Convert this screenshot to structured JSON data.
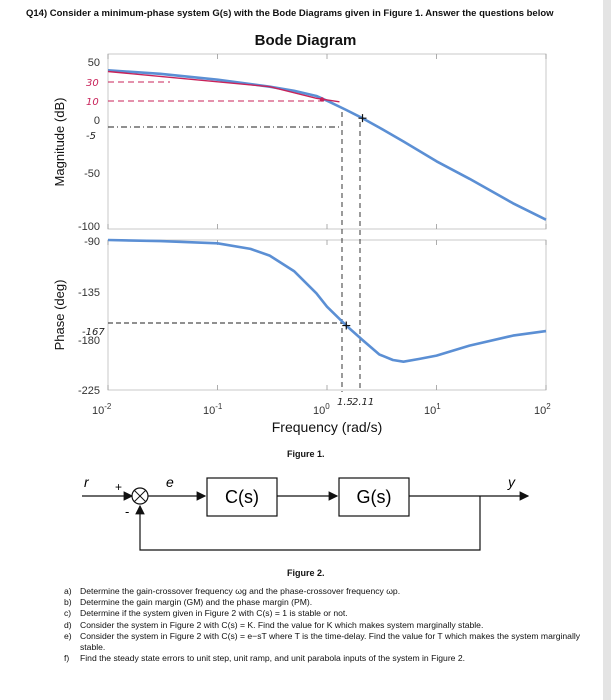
{
  "question_header": "Q14) Consider a minimum-phase system G(s) with the Bode Diagrams given in Figure 1. Answer the questions below",
  "bode": {
    "title": "Bode Diagram",
    "magnitude_ylabel": "Magnitude (dB)",
    "phase_ylabel": "Phase (deg)",
    "xlabel": "Frequency  (rad/s)",
    "mag_ticks": [
      "50",
      "0",
      "-50",
      "-100"
    ],
    "phase_ticks": [
      "-90",
      "-135",
      "-180",
      "-225"
    ],
    "x_ticks": [
      "10-2",
      "10-1",
      "100",
      "101",
      "102"
    ],
    "line_color": "#5b8fd4",
    "annotation_color": "#c8235a",
    "handwritten": {
      "mag_30": "30",
      "mag_10": "10",
      "mag_minus5": "-5",
      "phase_minus167": "-167",
      "freq_1_5": "1.5",
      "freq_2_11": "2.11"
    }
  },
  "chart_data": [
    {
      "type": "line",
      "title": "Bode Diagram",
      "xlabel": "Frequency (rad/s)",
      "ylabel": "Magnitude (dB)",
      "xscale": "log",
      "xlim": [
        0.01,
        100
      ],
      "ylim": [
        -100,
        50
      ],
      "series": [
        {
          "name": "Magnitude",
          "x": [
            0.01,
            0.03,
            0.1,
            0.3,
            0.5,
            0.8,
            1.0,
            1.5,
            2.11,
            3,
            5,
            10,
            20,
            50,
            100
          ],
          "y": [
            36,
            33,
            28,
            22,
            18.5,
            14,
            10,
            2,
            -5,
            -13,
            -25,
            -42,
            -57,
            -78,
            -92
          ]
        }
      ]
    },
    {
      "type": "line",
      "xlabel": "Frequency (rad/s)",
      "ylabel": "Phase (deg)",
      "xscale": "log",
      "xlim": [
        0.01,
        100
      ],
      "ylim": [
        -225,
        -90
      ],
      "series": [
        {
          "name": "Phase",
          "x": [
            0.01,
            0.03,
            0.1,
            0.2,
            0.3,
            0.5,
            0.8,
            1.0,
            1.5,
            2.11,
            3,
            4,
            5,
            7,
            10,
            20,
            50,
            100
          ],
          "y": [
            -90,
            -91,
            -93,
            -98,
            -104,
            -118,
            -138,
            -150,
            -167,
            -180,
            -193,
            -198,
            -199.5,
            -197,
            -194,
            -185,
            -176,
            -172
          ]
        }
      ]
    }
  ],
  "figure1_caption": "Figure 1.",
  "block": {
    "r": "r",
    "plus": "+",
    "minus": "-",
    "e": "e",
    "c_label": "C(s)",
    "g_label": "G(s)",
    "y": "y"
  },
  "figure2_caption": "Figure 2.",
  "questions": [
    {
      "label": "a)",
      "text": "Determine the gain-crossover frequency ωg and the phase-crossover frequency ωp."
    },
    {
      "label": "b)",
      "text": "Determine the gain margin (GM) and the phase margin (PM)."
    },
    {
      "label": "c)",
      "text": "Determine if the system given in Figure 2 with C(s) = 1 is stable or not."
    },
    {
      "label": "d)",
      "text": "Consider the system in Figure 2 with C(s) = K. Find the value for K which makes system marginally stable."
    },
    {
      "label": "e)",
      "text": "Consider the system in Figure 2 with C(s) = e−sT where T is the time-delay. Find the value for T which makes the system marginally stable."
    },
    {
      "label": "f)",
      "text": "Find the steady state errors to unit step, unit ramp, and unit parabola inputs of the system in Figure 2."
    }
  ]
}
